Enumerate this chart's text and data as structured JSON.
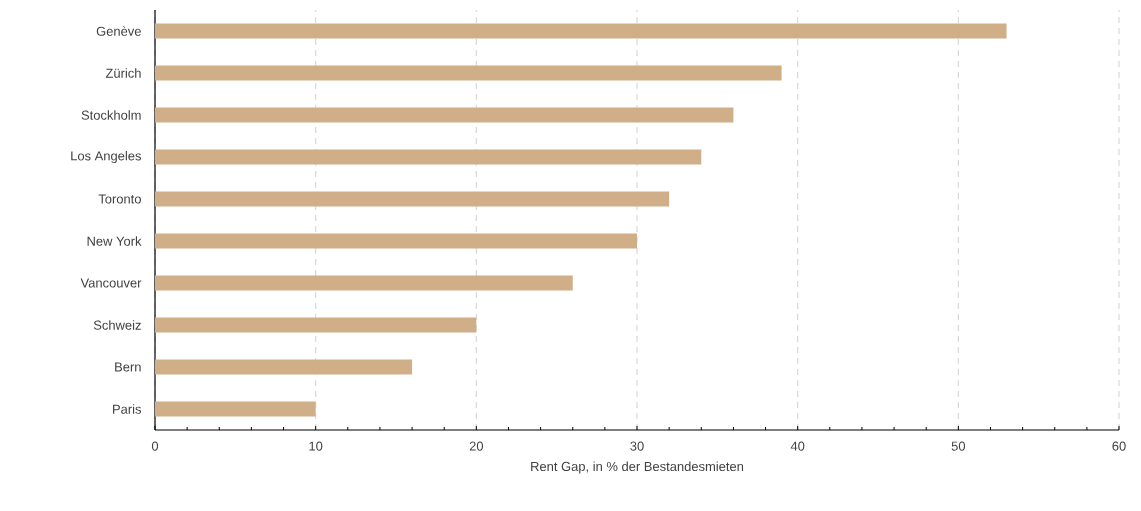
{
  "chart_data": {
    "type": "bar",
    "orientation": "horizontal",
    "xlabel": "Rent Gap, in % der Bestandesmieten",
    "categories": [
      "Genève",
      "Zürich",
      "Stockholm",
      "Los Angeles",
      "Toronto",
      "New York",
      "Vancouver",
      "Schweiz",
      "Bern",
      "Paris"
    ],
    "values": [
      53,
      39,
      36,
      34,
      32,
      30,
      26,
      20,
      16,
      10
    ],
    "color": "#cfae88",
    "xlim": [
      0,
      60
    ],
    "xticks": [
      0,
      10,
      20,
      30,
      40,
      50,
      60
    ],
    "grid": "x"
  }
}
